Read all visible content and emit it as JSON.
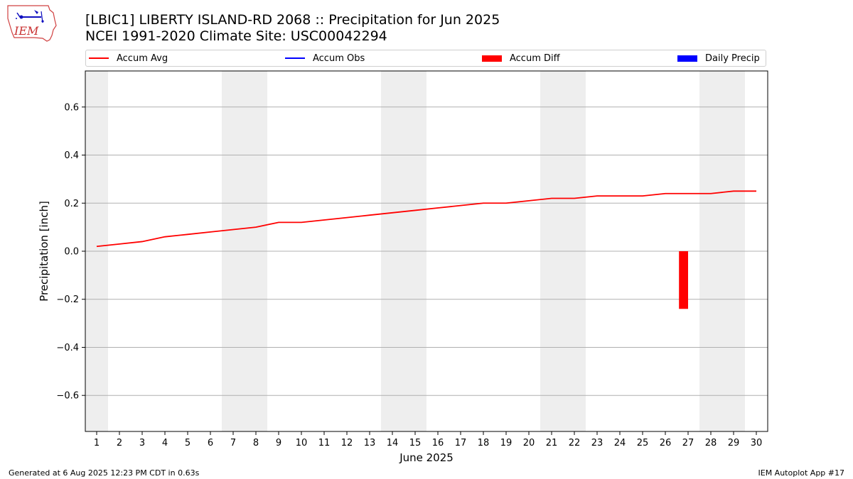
{
  "header": {
    "title_line1": "[LBIC1] LIBERTY ISLAND-RD 2068 :: Precipitation for Jun 2025",
    "title_line2": "NCEI 1991-2020 Climate Site: USC00042294",
    "logo_text": "IEM"
  },
  "legend": {
    "items": [
      {
        "label": "Accum Avg",
        "color": "#ff0000",
        "kind": "line"
      },
      {
        "label": "Accum Obs",
        "color": "#0000ff",
        "kind": "line"
      },
      {
        "label": "Accum Diff",
        "color": "#ff0000",
        "kind": "bar"
      },
      {
        "label": "Daily Precip",
        "color": "#0000ff",
        "kind": "bar"
      }
    ]
  },
  "footer": {
    "left": "Generated at 6 Aug 2025 12:23 PM CDT in 0.63s",
    "right": "IEM Autoplot App #17"
  },
  "chart_data": {
    "type": "line",
    "xlabel": "June 2025",
    "ylabel": "Precipitation [inch]",
    "xlim": [
      0.5,
      30.5
    ],
    "ylim": [
      -0.75,
      0.75
    ],
    "yticks": [
      -0.6,
      -0.4,
      -0.2,
      0.0,
      0.2,
      0.4,
      0.6
    ],
    "ytick_labels": [
      "−0.6",
      "−0.4",
      "−0.2",
      "0.0",
      "0.2",
      "0.4",
      "0.6"
    ],
    "x": [
      1,
      2,
      3,
      4,
      5,
      6,
      7,
      8,
      9,
      10,
      11,
      12,
      13,
      14,
      15,
      16,
      17,
      18,
      19,
      20,
      21,
      22,
      23,
      24,
      25,
      26,
      27,
      28,
      29,
      30
    ],
    "xtick_labels": [
      "1",
      "2",
      "3",
      "4",
      "5",
      "6",
      "7",
      "8",
      "9",
      "10",
      "11",
      "12",
      "13",
      "14",
      "15",
      "16",
      "17",
      "18",
      "19",
      "20",
      "21",
      "22",
      "23",
      "24",
      "25",
      "26",
      "27",
      "28",
      "29",
      "30"
    ],
    "weekend_days": [
      1,
      7,
      8,
      14,
      15,
      21,
      22,
      28,
      29
    ],
    "grid": "y",
    "series": [
      {
        "name": "Accum Avg",
        "kind": "line",
        "color": "#ff0000",
        "values": [
          0.02,
          0.03,
          0.04,
          0.06,
          0.07,
          0.08,
          0.09,
          0.1,
          0.12,
          0.12,
          0.13,
          0.14,
          0.15,
          0.16,
          0.17,
          0.18,
          0.19,
          0.2,
          0.2,
          0.21,
          0.22,
          0.22,
          0.23,
          0.23,
          0.23,
          0.24,
          0.24,
          0.24,
          0.25,
          0.25
        ]
      },
      {
        "name": "Accum Diff",
        "kind": "bar",
        "color": "#ff0000",
        "points": [
          {
            "x": 26.8,
            "value": -0.24
          }
        ]
      }
    ]
  }
}
